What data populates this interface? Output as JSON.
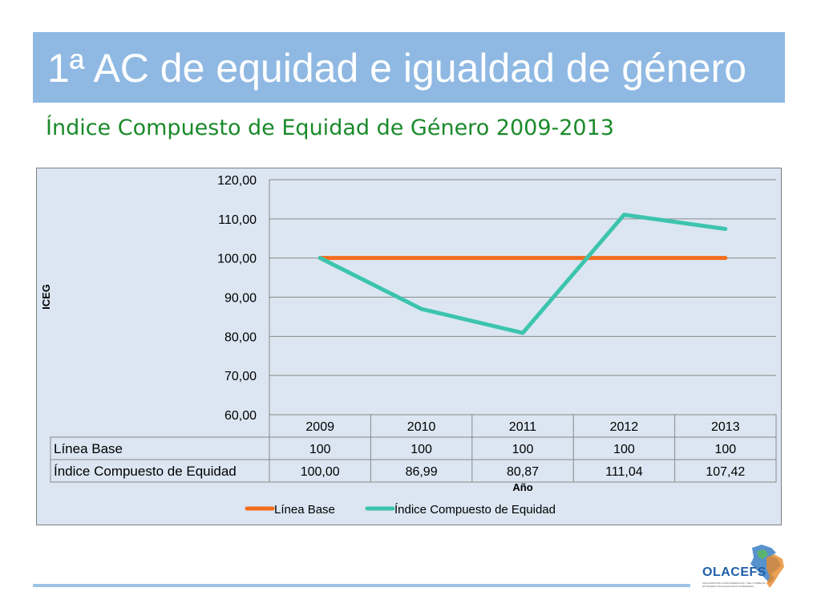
{
  "header": {
    "title": "1ª AC de equidad e igualdad de género",
    "subtitle": "Índice Compuesto de Equidad de Género 2009-2013"
  },
  "logo": {
    "name": "OLACEFS",
    "small_text": "ORGANIZACIÓN LATINOAMERICANA Y DEL CARIBE DE ENTIDADES FISCALIZADORAS SUPERIORES"
  },
  "colors": {
    "title_bar": "#8fb9e3",
    "subtitle": "#1a8a2a",
    "linea_base": "#f36d1c",
    "indice": "#3cc4ad",
    "chart_bg": "#dbe6f2"
  },
  "chart_data": {
    "type": "line",
    "categories": [
      "2009",
      "2010",
      "2011",
      "2012",
      "2013"
    ],
    "series": [
      {
        "name": "Línea Base",
        "values": [
          100,
          100,
          100,
          100,
          100
        ],
        "labels": [
          "100",
          "100",
          "100",
          "100",
          "100"
        ],
        "color": "#f36d1c"
      },
      {
        "name": "Índice Compuesto de Equidad",
        "values": [
          100.0,
          86.99,
          80.87,
          111.04,
          107.42
        ],
        "labels": [
          "100,00",
          "86,99",
          "80,87",
          "111,04",
          "107,42"
        ],
        "color": "#3cc4ad"
      }
    ],
    "yticks": [
      "60,00",
      "70,00",
      "80,00",
      "90,00",
      "100,00",
      "110,00",
      "120,00"
    ],
    "ylim": [
      60,
      120
    ],
    "xlabel": "Año",
    "ylabel": "ICEG",
    "grid": true,
    "legend": "bottom",
    "data_table": true
  }
}
